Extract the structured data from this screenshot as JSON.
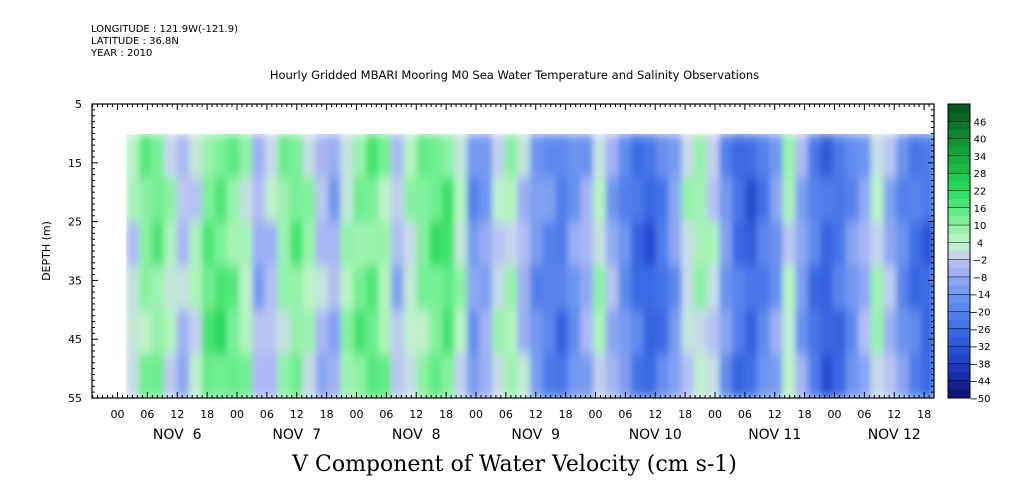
{
  "header": {
    "longitude": "LONGITUDE : 121.9W(-121.9)",
    "latitude": "LATITUDE : 36.8N",
    "year": "YEAR : 2010"
  },
  "chart_data": {
    "type": "heatmap",
    "title": "Hourly Gridded MBARI Mooring M0 Sea Water Temperature and Salinity Observations",
    "xlabel": "V Component of Water Velocity (cm s-1)",
    "ylabel": "DEPTH (m)",
    "ylim": [
      5,
      55
    ],
    "yticks": [
      5,
      15,
      25,
      35,
      45,
      55
    ],
    "data_depth_range": [
      10,
      55
    ],
    "hour_ticks": [
      "00",
      "06",
      "12",
      "18",
      "00",
      "06",
      "12",
      "18",
      "00",
      "06",
      "12",
      "18",
      "00",
      "06",
      "12",
      "18",
      "00",
      "06",
      "12",
      "18",
      "00",
      "06",
      "12",
      "18",
      "00",
      "06",
      "12",
      "18"
    ],
    "day_labels": [
      "NOV  6",
      "NOV  7",
      "NOV  8",
      "NOV  9",
      "NOV 10",
      "NOV 11",
      "NOV 12"
    ],
    "colorbar_levels": [
      46,
      40,
      34,
      28,
      22,
      16,
      10,
      4,
      -2,
      -8,
      -14,
      -20,
      -26,
      -32,
      -38,
      -44,
      -50
    ],
    "colorbar_min": -50,
    "colorbar_max": 52,
    "approx_column_values": [
      2,
      10,
      12,
      4,
      -4,
      2,
      14,
      16,
      12,
      6,
      -6,
      -2,
      8,
      12,
      6,
      -4,
      -8,
      6,
      12,
      14,
      8,
      -4,
      4,
      10,
      14,
      16,
      4,
      -14,
      -10,
      2,
      6,
      -4,
      -14,
      -18,
      -22,
      -14,
      -8,
      4,
      -8,
      -16,
      -24,
      -28,
      -22,
      -12,
      2,
      6,
      0,
      -14,
      -24,
      -28,
      -20,
      -12,
      4,
      -10,
      -22,
      -28,
      -24,
      -16,
      -8,
      4,
      -6,
      -16,
      -22,
      -26
    ]
  }
}
